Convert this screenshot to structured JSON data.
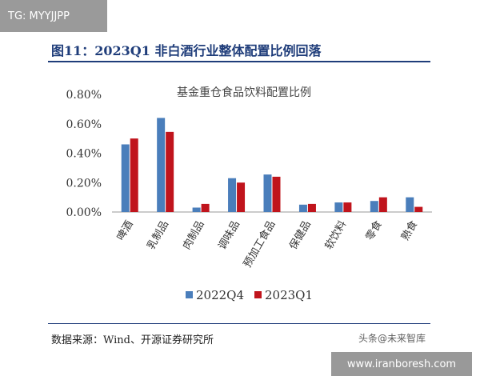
{
  "watermark": {
    "tag": "TG: MYYJJPP",
    "site": "www.iranboresh.com",
    "corner": "头条@未来智库"
  },
  "figure": {
    "title": "图11：2023Q1 非白酒行业整体配置比例回落",
    "source": "数据来源：Wind、开源证券研究所"
  },
  "chart_data": {
    "type": "bar",
    "title": "基金重仓食品饮料配置比例",
    "categories": [
      "啤酒",
      "乳制品",
      "肉制品",
      "调味品",
      "预加工食品",
      "保健品",
      "软饮料",
      "零食",
      "熟食"
    ],
    "series": [
      {
        "name": "2022Q4",
        "color": "#4a7ebb",
        "values": [
          0.46,
          0.64,
          0.03,
          0.23,
          0.255,
          0.05,
          0.065,
          0.075,
          0.1
        ]
      },
      {
        "name": "2023Q1",
        "color": "#c0141c",
        "values": [
          0.5,
          0.545,
          0.055,
          0.2,
          0.24,
          0.055,
          0.065,
          0.1,
          0.035
        ]
      }
    ],
    "yticks": [
      "0.00%",
      "0.20%",
      "0.40%",
      "0.60%",
      "0.80%"
    ],
    "ylim": [
      0,
      0.8
    ],
    "grid": false,
    "legend": "bottom"
  }
}
